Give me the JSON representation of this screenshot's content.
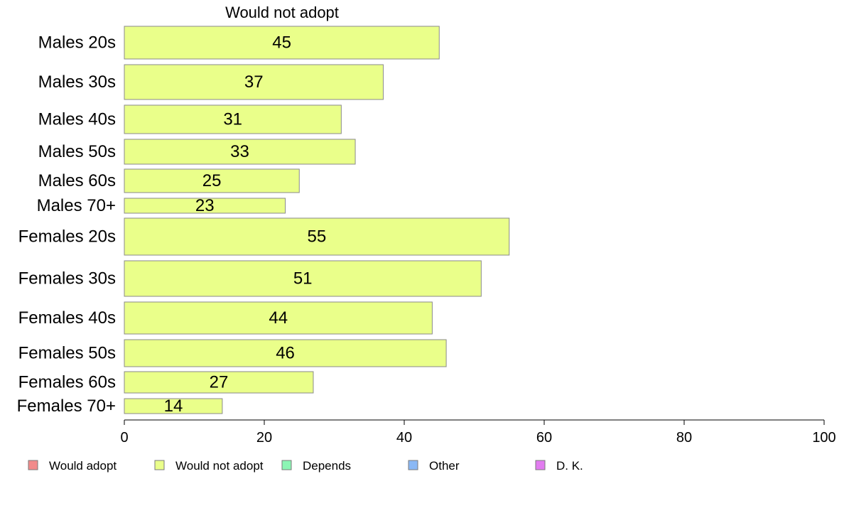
{
  "chart_data": {
    "type": "bar",
    "orientation": "horizontal",
    "title": "Would not adopt",
    "categories": [
      "Males 20s",
      "Males 30s",
      "Males 40s",
      "Males 50s",
      "Males 60s",
      "Males 70+",
      "Females 20s",
      "Females 30s",
      "Females 40s",
      "Females 50s",
      "Females 60s",
      "Females 70+"
    ],
    "series": [
      {
        "name": "Would not adopt",
        "values": [
          45,
          37,
          31,
          33,
          25,
          23,
          55,
          51,
          44,
          46,
          27,
          14
        ],
        "color": "#eaff8a"
      }
    ],
    "xlim": [
      0,
      100
    ],
    "xticks": [
      "0",
      "20",
      "40",
      "60",
      "80",
      "100"
    ],
    "grid": false,
    "legend": {
      "placement": "bottom",
      "items": [
        {
          "label": "Would adopt",
          "color": "#f28b8b"
        },
        {
          "label": "Would not adopt",
          "color": "#eaff8a"
        },
        {
          "label": "Depends",
          "color": "#8cf5b4"
        },
        {
          "label": "Other",
          "color": "#8ab8f5"
        },
        {
          "label": "D. K.",
          "color": "#e27cf0"
        }
      ]
    }
  }
}
